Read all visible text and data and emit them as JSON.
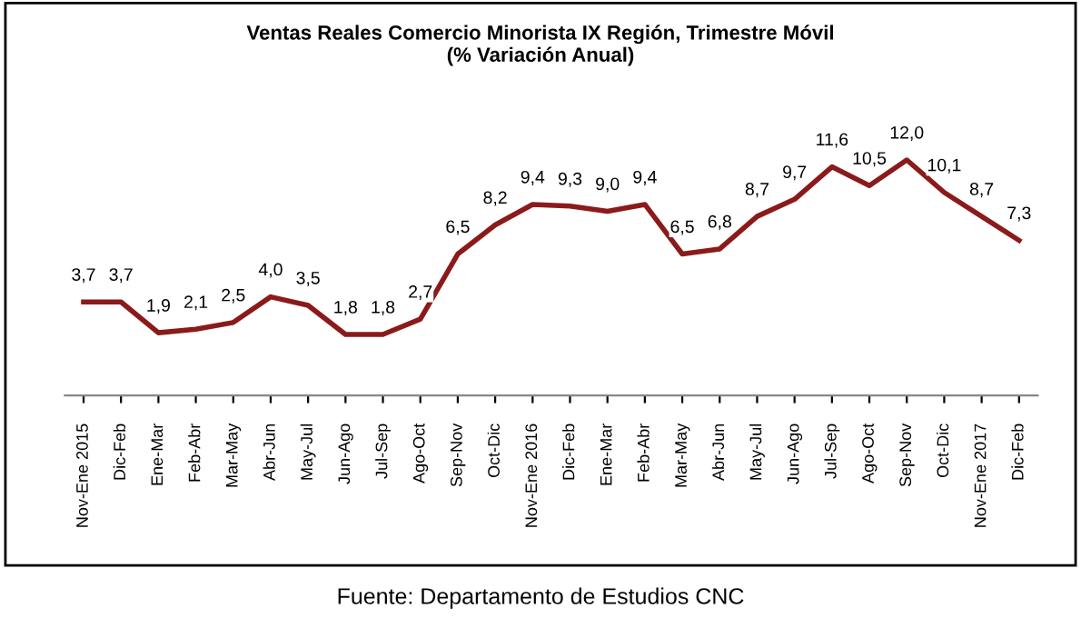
{
  "chart_data": {
    "type": "line",
    "title": "Ventas Reales Comercio Minorista IX Región, Trimestre Móvil\n(% Variación Anual)",
    "categories": [
      "Nov-Ene 2015",
      "Dic-Feb",
      "Ene-Mar",
      "Feb-Abr",
      "Mar-May",
      "Abr-Jun",
      "May-Jul",
      "Jun-Ago",
      "Jul-Sep",
      "Ago-Oct",
      "Sep-Nov",
      "Oct-Dic",
      "Nov-Ene 2016",
      "Dic-Feb",
      "Ene-Mar",
      "Feb-Abr",
      "Mar-May",
      "Abr-Jun",
      "May-Jul",
      "Jun-Ago",
      "Jul-Sep",
      "Ago-Oct",
      "Sep-Nov",
      "Oct-Dic",
      "Nov-Ene 2017",
      "Dic-Feb"
    ],
    "series": [
      {
        "color": "#8b1a1a",
        "values": [
          3.7,
          3.7,
          1.9,
          2.1,
          2.5,
          4.0,
          3.5,
          1.8,
          1.8,
          2.7,
          6.5,
          8.2,
          9.4,
          9.3,
          9.0,
          9.4,
          6.5,
          6.8,
          8.7,
          9.7,
          11.6,
          10.5,
          12.0,
          10.1,
          8.7,
          7.3
        ],
        "value_labels": [
          "3,7",
          "3,7",
          "1,9",
          "2,1",
          "2,5",
          "4,0",
          "3,5",
          "1,8",
          "1,8",
          "2,7",
          "6,5",
          "8,2",
          "9,4",
          "9,3",
          "9,0",
          "9,4",
          "6,5",
          "6,8",
          "8,7",
          "9,7",
          "11,6",
          "10,5",
          "12,0",
          "10,1",
          "8,7",
          "7,3"
        ]
      }
    ],
    "tick_labels": "x",
    "grid": false,
    "legend": false,
    "marker": "none",
    "line_style": "solid",
    "annotations": [
      "Fuente: Departamento de Estudios CNC"
    ]
  }
}
